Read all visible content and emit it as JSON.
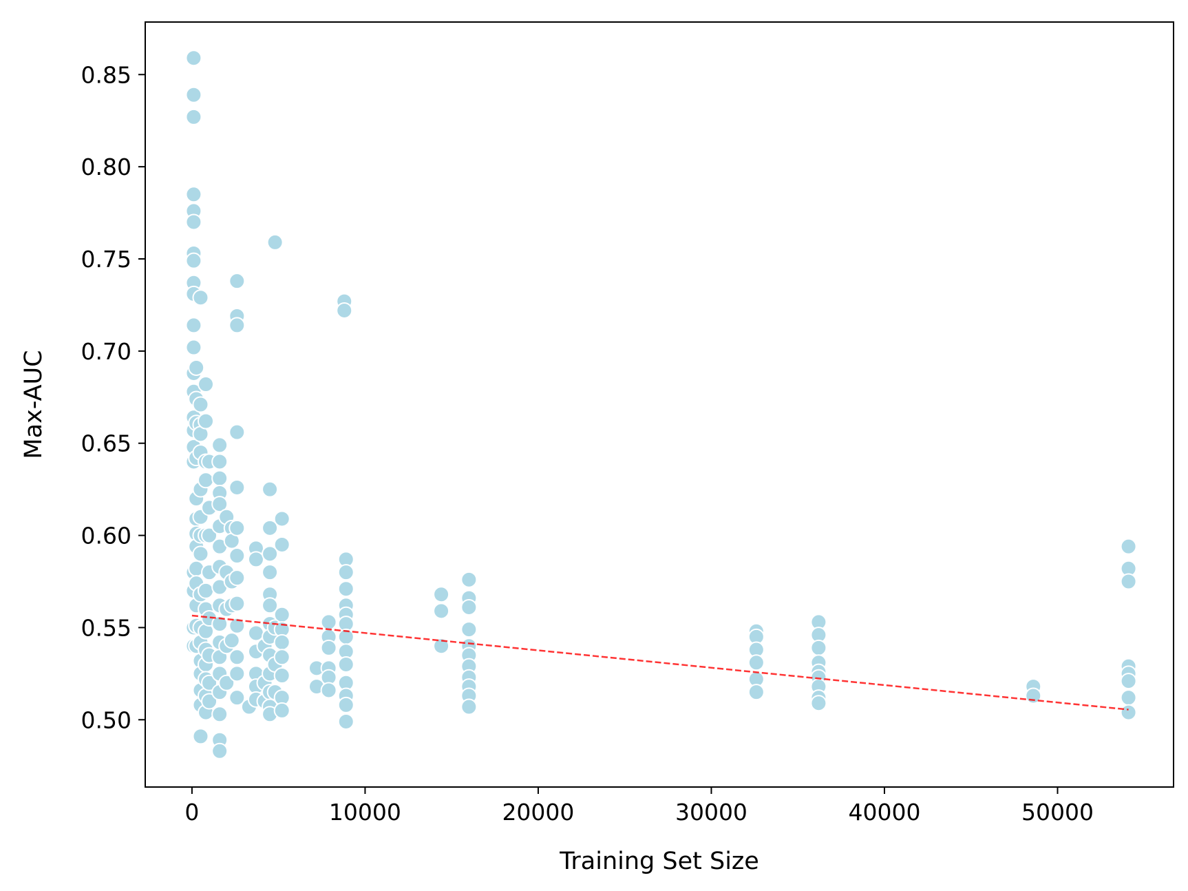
{
  "chart_data": {
    "type": "scatter",
    "title": "",
    "xlabel": "Training Set Size",
    "ylabel": "Max-AUC",
    "xlim": [
      -2700,
      56700
    ],
    "ylim": [
      0.4635,
      0.8785
    ],
    "xticks": [
      0,
      10000,
      20000,
      30000,
      40000,
      50000
    ],
    "xtick_labels": [
      "0",
      "10000",
      "20000",
      "30000",
      "40000",
      "50000"
    ],
    "yticks": [
      0.5,
      0.55,
      0.6,
      0.65,
      0.7,
      0.75,
      0.8,
      0.85
    ],
    "ytick_labels": [
      "0.50",
      "0.55",
      "0.60",
      "0.65",
      "0.70",
      "0.75",
      "0.80",
      "0.85"
    ],
    "grid": false,
    "legend": "none",
    "colors": {
      "points": "#add8e6",
      "point_edge": "#ffffff",
      "trend": "#ff0000"
    },
    "series": [
      {
        "type": "scatter",
        "points": [
          [
            100,
            0.859
          ],
          [
            100,
            0.839
          ],
          [
            100,
            0.827
          ],
          [
            100,
            0.785
          ],
          [
            100,
            0.776
          ],
          [
            100,
            0.77
          ],
          [
            100,
            0.753
          ],
          [
            100,
            0.749
          ],
          [
            100,
            0.737
          ],
          [
            100,
            0.731
          ],
          [
            100,
            0.714
          ],
          [
            100,
            0.702
          ],
          [
            100,
            0.688
          ],
          [
            100,
            0.678
          ],
          [
            100,
            0.664
          ],
          [
            100,
            0.657
          ],
          [
            100,
            0.648
          ],
          [
            100,
            0.64
          ],
          [
            100,
            0.58
          ],
          [
            100,
            0.57
          ],
          [
            100,
            0.55
          ],
          [
            100,
            0.54
          ],
          [
            250,
            0.691
          ],
          [
            250,
            0.674
          ],
          [
            250,
            0.661
          ],
          [
            250,
            0.642
          ],
          [
            250,
            0.62
          ],
          [
            250,
            0.609
          ],
          [
            250,
            0.601
          ],
          [
            250,
            0.594
          ],
          [
            250,
            0.582
          ],
          [
            250,
            0.574
          ],
          [
            250,
            0.562
          ],
          [
            250,
            0.551
          ],
          [
            250,
            0.54
          ],
          [
            500,
            0.729
          ],
          [
            500,
            0.671
          ],
          [
            500,
            0.66
          ],
          [
            500,
            0.655
          ],
          [
            500,
            0.645
          ],
          [
            500,
            0.625
          ],
          [
            500,
            0.61
          ],
          [
            500,
            0.6
          ],
          [
            500,
            0.59
          ],
          [
            500,
            0.568
          ],
          [
            500,
            0.55
          ],
          [
            500,
            0.542
          ],
          [
            500,
            0.532
          ],
          [
            500,
            0.525
          ],
          [
            500,
            0.516
          ],
          [
            500,
            0.508
          ],
          [
            500,
            0.491
          ],
          [
            800,
            0.682
          ],
          [
            800,
            0.662
          ],
          [
            800,
            0.64
          ],
          [
            800,
            0.63
          ],
          [
            800,
            0.6
          ],
          [
            800,
            0.57
          ],
          [
            800,
            0.56
          ],
          [
            800,
            0.548
          ],
          [
            800,
            0.538
          ],
          [
            800,
            0.53
          ],
          [
            800,
            0.522
          ],
          [
            800,
            0.513
          ],
          [
            800,
            0.504
          ],
          [
            1000,
            0.64
          ],
          [
            1000,
            0.615
          ],
          [
            1000,
            0.6
          ],
          [
            1000,
            0.58
          ],
          [
            1000,
            0.555
          ],
          [
            1000,
            0.535
          ],
          [
            1000,
            0.52
          ],
          [
            1000,
            0.51
          ],
          [
            1600,
            0.649
          ],
          [
            1600,
            0.64
          ],
          [
            1600,
            0.631
          ],
          [
            1600,
            0.623
          ],
          [
            1600,
            0.617
          ],
          [
            1600,
            0.605
          ],
          [
            1600,
            0.594
          ],
          [
            1600,
            0.583
          ],
          [
            1600,
            0.572
          ],
          [
            1600,
            0.562
          ],
          [
            1600,
            0.552
          ],
          [
            1600,
            0.542
          ],
          [
            1600,
            0.534
          ],
          [
            1600,
            0.525
          ],
          [
            1600,
            0.515
          ],
          [
            1600,
            0.503
          ],
          [
            1600,
            0.489
          ],
          [
            1600,
            0.483
          ],
          [
            2000,
            0.61
          ],
          [
            2000,
            0.58
          ],
          [
            2000,
            0.56
          ],
          [
            2000,
            0.54
          ],
          [
            2000,
            0.52
          ],
          [
            2300,
            0.604
          ],
          [
            2300,
            0.597
          ],
          [
            2300,
            0.575
          ],
          [
            2300,
            0.562
          ],
          [
            2300,
            0.543
          ],
          [
            2600,
            0.738
          ],
          [
            2600,
            0.719
          ],
          [
            2600,
            0.714
          ],
          [
            2600,
            0.656
          ],
          [
            2600,
            0.626
          ],
          [
            2600,
            0.604
          ],
          [
            2600,
            0.589
          ],
          [
            2600,
            0.577
          ],
          [
            2600,
            0.563
          ],
          [
            2600,
            0.551
          ],
          [
            2600,
            0.534
          ],
          [
            2600,
            0.525
          ],
          [
            2600,
            0.512
          ],
          [
            3300,
            0.507
          ],
          [
            3700,
            0.593
          ],
          [
            3700,
            0.587
          ],
          [
            3700,
            0.547
          ],
          [
            3700,
            0.537
          ],
          [
            3700,
            0.525
          ],
          [
            3700,
            0.518
          ],
          [
            3700,
            0.511
          ],
          [
            4200,
            0.54
          ],
          [
            4200,
            0.52
          ],
          [
            4200,
            0.51
          ],
          [
            4500,
            0.625
          ],
          [
            4500,
            0.604
          ],
          [
            4500,
            0.59
          ],
          [
            4500,
            0.58
          ],
          [
            4500,
            0.568
          ],
          [
            4500,
            0.562
          ],
          [
            4500,
            0.552
          ],
          [
            4500,
            0.545
          ],
          [
            4500,
            0.535
          ],
          [
            4500,
            0.525
          ],
          [
            4500,
            0.515
          ],
          [
            4500,
            0.507
          ],
          [
            4500,
            0.503
          ],
          [
            4800,
            0.759
          ],
          [
            4800,
            0.55
          ],
          [
            4800,
            0.53
          ],
          [
            4800,
            0.515
          ],
          [
            5200,
            0.609
          ],
          [
            5200,
            0.595
          ],
          [
            5200,
            0.557
          ],
          [
            5200,
            0.549
          ],
          [
            5200,
            0.542
          ],
          [
            5200,
            0.534
          ],
          [
            5200,
            0.524
          ],
          [
            5200,
            0.512
          ],
          [
            5200,
            0.505
          ],
          [
            7200,
            0.528
          ],
          [
            7200,
            0.518
          ],
          [
            7900,
            0.553
          ],
          [
            7900,
            0.545
          ],
          [
            7900,
            0.539
          ],
          [
            7900,
            0.528
          ],
          [
            7900,
            0.523
          ],
          [
            7900,
            0.516
          ],
          [
            8800,
            0.727
          ],
          [
            8800,
            0.722
          ],
          [
            8900,
            0.587
          ],
          [
            8900,
            0.58
          ],
          [
            8900,
            0.571
          ],
          [
            8900,
            0.562
          ],
          [
            8900,
            0.557
          ],
          [
            8900,
            0.552
          ],
          [
            8900,
            0.545
          ],
          [
            8900,
            0.537
          ],
          [
            8900,
            0.53
          ],
          [
            8900,
            0.52
          ],
          [
            8900,
            0.513
          ],
          [
            8900,
            0.508
          ],
          [
            8900,
            0.499
          ],
          [
            14400,
            0.568
          ],
          [
            14400,
            0.559
          ],
          [
            14400,
            0.54
          ],
          [
            16000,
            0.576
          ],
          [
            16000,
            0.566
          ],
          [
            16000,
            0.561
          ],
          [
            16000,
            0.549
          ],
          [
            16000,
            0.54
          ],
          [
            16000,
            0.535
          ],
          [
            16000,
            0.529
          ],
          [
            16000,
            0.523
          ],
          [
            16000,
            0.518
          ],
          [
            16000,
            0.513
          ],
          [
            16000,
            0.507
          ],
          [
            32600,
            0.548
          ],
          [
            32600,
            0.545
          ],
          [
            32600,
            0.538
          ],
          [
            32600,
            0.531
          ],
          [
            32600,
            0.522
          ],
          [
            32600,
            0.515
          ],
          [
            36200,
            0.553
          ],
          [
            36200,
            0.546
          ],
          [
            36200,
            0.539
          ],
          [
            36200,
            0.531
          ],
          [
            36200,
            0.526
          ],
          [
            36200,
            0.523
          ],
          [
            36200,
            0.518
          ],
          [
            36200,
            0.512
          ],
          [
            36200,
            0.509
          ],
          [
            48600,
            0.518
          ],
          [
            48600,
            0.513
          ],
          [
            54100,
            0.594
          ],
          [
            54100,
            0.582
          ],
          [
            54100,
            0.575
          ],
          [
            54100,
            0.529
          ],
          [
            54100,
            0.525
          ],
          [
            54100,
            0.521
          ],
          [
            54100,
            0.512
          ],
          [
            54100,
            0.504
          ]
        ]
      },
      {
        "type": "line",
        "style": "dashed",
        "points": [
          [
            0,
            0.5565
          ],
          [
            54100,
            0.5055
          ]
        ]
      }
    ]
  }
}
